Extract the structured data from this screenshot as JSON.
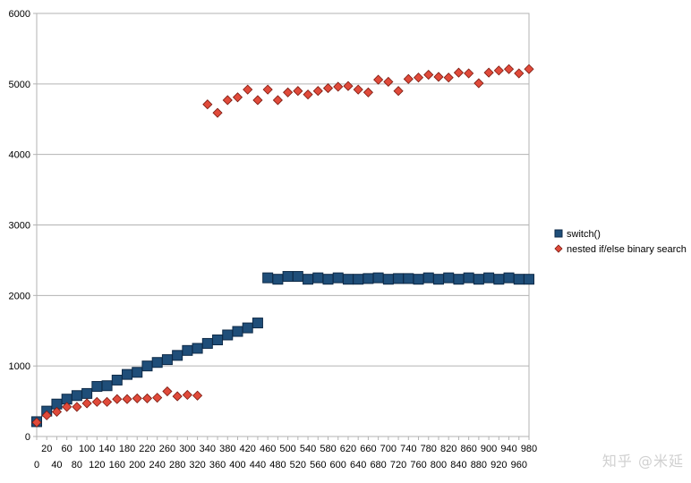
{
  "chart_data": {
    "type": "scatter",
    "xlim": [
      0,
      980
    ],
    "ylim": [
      0,
      6000
    ],
    "grid": true,
    "legend_position": "right",
    "y_ticks": [
      0,
      1000,
      2000,
      3000,
      4000,
      5000,
      6000
    ],
    "x_ticks_upper": [
      "20",
      "60",
      "100",
      "140",
      "180",
      "220",
      "260",
      "300",
      "340",
      "380",
      "420",
      "460",
      "500",
      "540",
      "580",
      "620",
      "660",
      "700",
      "740",
      "780",
      "820",
      "860",
      "900",
      "940",
      "980"
    ],
    "x_ticks_lower": [
      "0",
      "40",
      "80",
      "120",
      "160",
      "200",
      "240",
      "280",
      "320",
      "360",
      "400",
      "440",
      "480",
      "520",
      "560",
      "600",
      "640",
      "680",
      "720",
      "760",
      "800",
      "840",
      "880",
      "920",
      "960"
    ],
    "series": [
      {
        "name": "switch()",
        "color": "#1f4e79",
        "marker": "square",
        "x": [
          0,
          20,
          40,
          60,
          80,
          100,
          120,
          140,
          160,
          180,
          200,
          220,
          240,
          260,
          280,
          300,
          320,
          340,
          360,
          380,
          400,
          420,
          440,
          460,
          480,
          500,
          520,
          540,
          560,
          580,
          600,
          620,
          640,
          660,
          680,
          700,
          720,
          740,
          760,
          780,
          800,
          820,
          840,
          860,
          880,
          900,
          920,
          940,
          960,
          980
        ],
        "y": [
          210,
          360,
          460,
          530,
          580,
          610,
          710,
          720,
          800,
          880,
          910,
          1000,
          1050,
          1090,
          1150,
          1220,
          1250,
          1320,
          1370,
          1440,
          1490,
          1540,
          1610,
          2250,
          2230,
          2270,
          2270,
          2230,
          2250,
          2230,
          2250,
          2230,
          2230,
          2240,
          2250,
          2230,
          2240,
          2240,
          2230,
          2250,
          2230,
          2250,
          2230,
          2250,
          2230,
          2250,
          2230,
          2250,
          2230,
          2230
        ]
      },
      {
        "name": "nested if/else binary search",
        "color": "#e04a3a",
        "marker": "diamond",
        "x": [
          0,
          20,
          40,
          60,
          80,
          100,
          120,
          140,
          160,
          180,
          200,
          220,
          240,
          260,
          280,
          300,
          320,
          340,
          360,
          380,
          400,
          420,
          440,
          460,
          480,
          500,
          520,
          540,
          560,
          580,
          600,
          620,
          640,
          660,
          680,
          700,
          720,
          740,
          760,
          780,
          800,
          820,
          840,
          860,
          880,
          900,
          920,
          940,
          960,
          980
        ],
        "y": [
          200,
          300,
          350,
          420,
          420,
          470,
          490,
          490,
          530,
          530,
          540,
          540,
          550,
          640,
          570,
          590,
          580,
          4710,
          4590,
          4770,
          4810,
          4920,
          4770,
          4920,
          4770,
          4880,
          4900,
          4850,
          4900,
          4940,
          4960,
          4970,
          4920,
          4880,
          5060,
          5030,
          4900,
          5070,
          5090,
          5130,
          5100,
          5090,
          5160,
          5150,
          5010,
          5160,
          5190,
          5210,
          5150,
          5210
        ]
      }
    ]
  },
  "watermark": "知乎 @米延"
}
